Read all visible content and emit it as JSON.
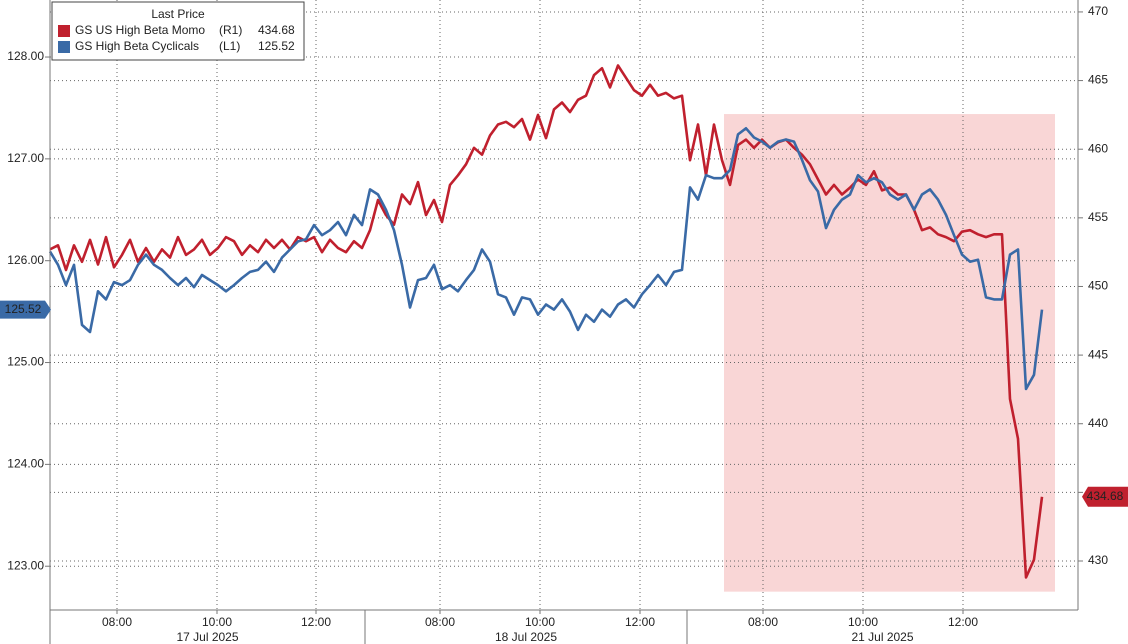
{
  "chart_data": {
    "type": "line",
    "legend_title": "Last Price",
    "xlim": [
      0,
      128.5
    ],
    "xticks": [
      {
        "value": 8.375,
        "label": "08:00"
      },
      {
        "value": 20.875,
        "label": "10:00"
      },
      {
        "value": 33.25,
        "label": "12:00"
      },
      {
        "value": 48.75,
        "label": "08:00"
      },
      {
        "value": 61.25,
        "label": "10:00"
      },
      {
        "value": 73.75,
        "label": "12:00"
      },
      {
        "value": 89.125,
        "label": "08:00"
      },
      {
        "value": 101.625,
        "label": "10:00"
      },
      {
        "value": 114.125,
        "label": "12:00"
      }
    ],
    "days": [
      {
        "label": "17 Jul 2025",
        "range": [
          0,
          39.375
        ]
      },
      {
        "label": "18 Jul 2025",
        "range": [
          39.375,
          79.625
        ]
      },
      {
        "label": "21 Jul 2025",
        "range": [
          79.625,
          128.5
        ]
      }
    ],
    "ylim": [
      122.57,
      128.56
    ],
    "yticks": [
      {
        "value": 123,
        "label": "123.00"
      },
      {
        "value": 124,
        "label": "124.00"
      },
      {
        "value": 125,
        "label": "125.00"
      },
      {
        "value": 126,
        "label": "126.00"
      },
      {
        "value": 127,
        "label": "127.00"
      },
      {
        "value": 128,
        "label": "128.00"
      }
    ],
    "y2lim": [
      426.43,
      470.87
    ],
    "y2ticks": [
      430,
      435,
      440,
      445,
      450,
      455,
      460,
      465,
      470
    ],
    "grid": true,
    "highlight": {
      "xrange": [
        84.25,
        125.625
      ],
      "yrange": [
        122.75,
        127.44
      ],
      "color": "#f9d6d6"
    },
    "series": [
      {
        "name": "GS US High Beta Momo",
        "tag": "(R1)",
        "axis": "y2",
        "color": "#c0202e",
        "values": [
          452.7,
          453.0,
          451.2,
          453.0,
          451.8,
          453.4,
          451.6,
          453.6,
          451.4,
          452.3,
          453.4,
          451.8,
          452.8,
          451.8,
          452.7,
          452.1,
          453.6,
          452.3,
          452.7,
          453.4,
          452.3,
          452.8,
          453.6,
          453.3,
          452.3,
          453.0,
          452.5,
          453.4,
          452.8,
          453.4,
          452.7,
          453.6,
          453.3,
          453.6,
          452.5,
          453.4,
          452.8,
          452.5,
          453.3,
          452.8,
          454.1,
          456.3,
          455.2,
          454.5,
          456.7,
          456.0,
          457.6,
          455.2,
          456.3,
          454.7,
          457.4,
          458.1,
          458.9,
          460.1,
          459.6,
          461.0,
          461.8,
          462.0,
          461.6,
          462.2,
          460.7,
          462.5,
          460.8,
          462.9,
          463.4,
          462.7,
          463.6,
          463.9,
          465.4,
          465.9,
          464.5,
          466.1,
          465.2,
          464.3,
          463.9,
          464.7,
          463.9,
          464.1,
          463.7,
          463.9,
          459.2,
          461.8,
          458.1,
          461.8,
          459.2,
          457.4,
          460.3,
          460.7,
          460.1,
          460.7,
          460.1,
          460.5,
          460.7,
          460.1,
          459.6,
          458.9,
          457.8,
          456.7,
          457.4,
          456.7,
          457.2,
          457.8,
          457.4,
          458.4,
          457.0,
          457.2,
          456.7,
          456.7,
          455.6,
          454.1,
          454.3,
          453.8,
          453.6,
          453.3,
          454.0,
          454.1,
          453.8,
          453.6,
          453.8,
          453.8,
          441.8,
          438.9,
          428.8,
          430.1,
          434.68
        ]
      },
      {
        "name": "GS High Beta Cyclicals",
        "tag": "(L1)",
        "axis": "y",
        "color": "#3a6aa6",
        "values": [
          126.09,
          125.96,
          125.76,
          125.96,
          125.37,
          125.3,
          125.7,
          125.62,
          125.79,
          125.76,
          125.81,
          125.96,
          126.06,
          125.96,
          125.91,
          125.83,
          125.76,
          125.83,
          125.74,
          125.86,
          125.81,
          125.76,
          125.7,
          125.76,
          125.83,
          125.89,
          125.91,
          125.99,
          125.89,
          126.03,
          126.11,
          126.19,
          126.21,
          126.35,
          126.25,
          126.3,
          126.38,
          126.25,
          126.45,
          126.35,
          126.7,
          126.65,
          126.5,
          126.3,
          125.96,
          125.54,
          125.81,
          125.83,
          125.96,
          125.72,
          125.76,
          125.7,
          125.81,
          125.91,
          126.11,
          125.99,
          125.67,
          125.64,
          125.47,
          125.64,
          125.62,
          125.47,
          125.57,
          125.52,
          125.62,
          125.5,
          125.32,
          125.47,
          125.4,
          125.52,
          125.45,
          125.57,
          125.62,
          125.54,
          125.67,
          125.76,
          125.86,
          125.76,
          125.89,
          125.91,
          126.72,
          126.6,
          126.84,
          126.81,
          126.81,
          126.89,
          127.24,
          127.3,
          127.21,
          127.17,
          127.11,
          127.17,
          127.19,
          127.17,
          126.99,
          126.79,
          126.68,
          126.32,
          126.5,
          126.6,
          126.65,
          126.84,
          126.77,
          126.81,
          126.77,
          126.65,
          126.6,
          126.65,
          126.5,
          126.65,
          126.7,
          126.6,
          126.45,
          126.25,
          126.06,
          125.99,
          126.01,
          125.64,
          125.62,
          125.62,
          126.06,
          126.11,
          124.74,
          124.88,
          125.52
        ]
      }
    ]
  }
}
